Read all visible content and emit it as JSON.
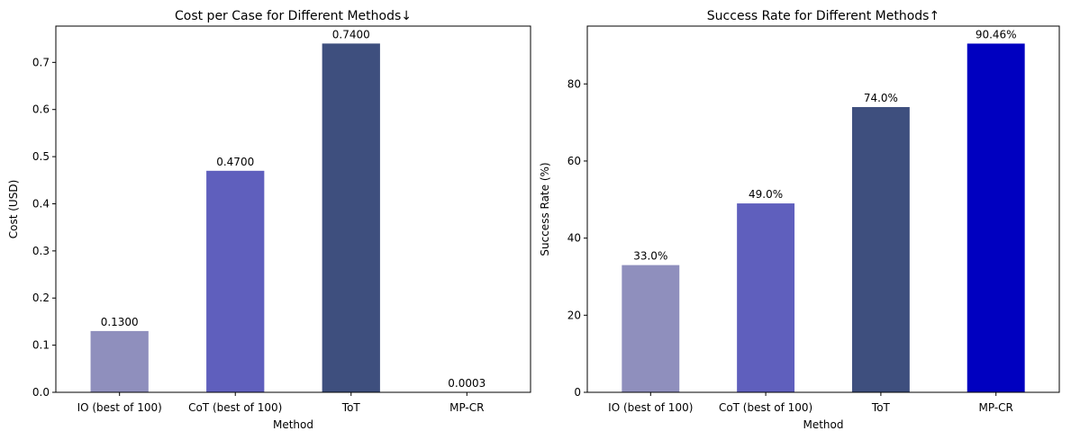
{
  "chart_data": [
    {
      "type": "bar",
      "title": "Cost per Case for Different Methods↓",
      "xlabel": "Method",
      "ylabel": "Cost (USD)",
      "categories": [
        "IO (best of 100)",
        "CoT (best of 100)",
        "ToT",
        "MP-CR"
      ],
      "values": [
        0.13,
        0.47,
        0.74,
        0.0003
      ],
      "value_labels": [
        "0.1300",
        "0.4700",
        "0.7400",
        "0.0003"
      ],
      "colors": [
        "#8f8fbd",
        "#5f5fbd",
        "#3e4f7e",
        "#0000c0"
      ],
      "ylim": [
        0,
        0.777
      ],
      "yticks": [
        0,
        0.1,
        0.2,
        0.3,
        0.4,
        0.5,
        0.6,
        0.7
      ],
      "ytick_labels": [
        "0.0",
        "0.1",
        "0.2",
        "0.3",
        "0.4",
        "0.5",
        "0.6",
        "0.7"
      ],
      "grid": false,
      "legend": "none"
    },
    {
      "type": "bar",
      "title": "Success Rate for Different Methods↑",
      "xlabel": "Method",
      "ylabel": "Success Rate (%)",
      "categories": [
        "IO (best of 100)",
        "CoT (best of 100)",
        "ToT",
        "MP-CR"
      ],
      "values": [
        33.0,
        49.0,
        74.0,
        90.46
      ],
      "value_labels": [
        "33.0%",
        "49.0%",
        "74.0%",
        "90.46%"
      ],
      "colors": [
        "#8f8fbd",
        "#5f5fbd",
        "#3e4f7e",
        "#0000c0"
      ],
      "ylim": [
        0,
        95
      ],
      "yticks": [
        0,
        20,
        40,
        60,
        80
      ],
      "ytick_labels": [
        "0",
        "20",
        "40",
        "60",
        "80"
      ],
      "grid": false,
      "legend": "none"
    }
  ]
}
